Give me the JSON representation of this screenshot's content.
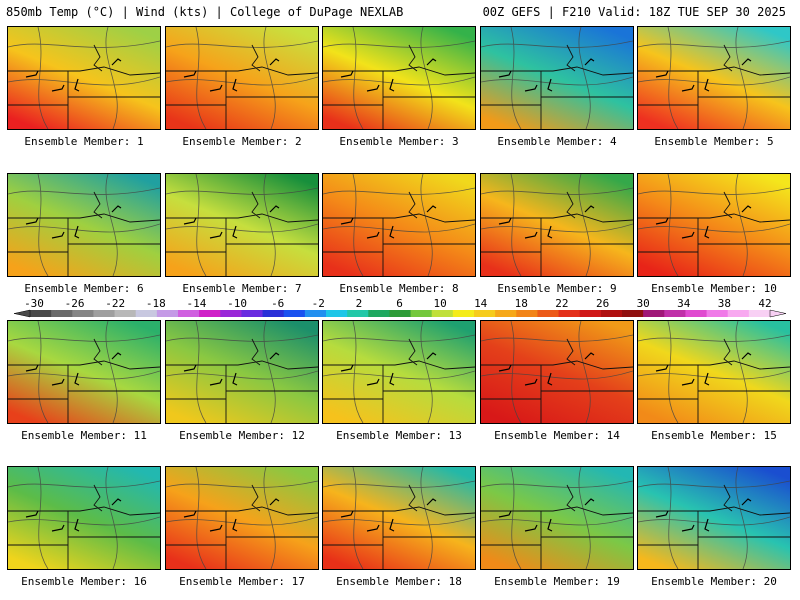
{
  "header": {
    "left": "850mb Temp (°C) | Wind (kts) | College of DuPage NEXLAB",
    "right": "00Z GEFS | F210 Valid: 18Z TUE SEP 30 2025"
  },
  "member_label_prefix": "Ensemble Member: ",
  "members": [
    {
      "id": 1,
      "label": "Ensemble Member: 1",
      "stops": [
        "#9ed046",
        "#f6c41c",
        "#ea2020"
      ]
    },
    {
      "id": 2,
      "label": "Ensemble Member: 2",
      "stops": [
        "#c9e03e",
        "#f6a31a",
        "#e83419"
      ]
    },
    {
      "id": 3,
      "label": "Ensemble Member: 3",
      "stops": [
        "#34b24a",
        "#f2e31a",
        "#e8301a"
      ]
    },
    {
      "id": 4,
      "label": "Ensemble Member: 4",
      "stops": [
        "#1a74d8",
        "#2ec2a0",
        "#f29a18"
      ]
    },
    {
      "id": 5,
      "label": "Ensemble Member: 5",
      "stops": [
        "#2fc7c7",
        "#f6c41c",
        "#ee3020"
      ]
    },
    {
      "id": 6,
      "label": "Ensemble Member: 6",
      "stops": [
        "#20a0a0",
        "#9fd040",
        "#f6a21a"
      ]
    },
    {
      "id": 7,
      "label": "Ensemble Member: 7",
      "stops": [
        "#178f3c",
        "#c6df3e",
        "#f6a21a"
      ]
    },
    {
      "id": 8,
      "label": "Ensemble Member: 8",
      "stops": [
        "#f0d81c",
        "#f48a18",
        "#e8301a"
      ]
    },
    {
      "id": 9,
      "label": "Ensemble Member: 9",
      "stops": [
        "#34a84a",
        "#f6b61c",
        "#e8301a"
      ]
    },
    {
      "id": 10,
      "label": "Ensemble Member: 10",
      "stops": [
        "#f4e61c",
        "#f48a18",
        "#e82418"
      ]
    },
    {
      "id": 11,
      "label": "Ensemble Member: 11",
      "stops": [
        "#2bb06b",
        "#a8d840",
        "#e8401a"
      ]
    },
    {
      "id": 12,
      "label": "Ensemble Member: 12",
      "stops": [
        "#1b8f6b",
        "#8ac842",
        "#f0c81c"
      ]
    },
    {
      "id": 13,
      "label": "Ensemble Member: 13",
      "stops": [
        "#1ea070",
        "#b6dc3e",
        "#f6c21c"
      ]
    },
    {
      "id": 14,
      "label": "Ensemble Member: 14",
      "stops": [
        "#f09a18",
        "#e4401a",
        "#d81818"
      ]
    },
    {
      "id": 15,
      "label": "Ensemble Member: 15",
      "stops": [
        "#28c0a0",
        "#f0d81c",
        "#f28a18"
      ]
    },
    {
      "id": 16,
      "label": "Ensemble Member: 16",
      "stops": [
        "#22b8b0",
        "#5cbc48",
        "#f0d41c"
      ]
    },
    {
      "id": 17,
      "label": "Ensemble Member: 17",
      "stops": [
        "#8ac842",
        "#f6a21a",
        "#e8301a"
      ]
    },
    {
      "id": 18,
      "label": "Ensemble Member: 18",
      "stops": [
        "#23b8a8",
        "#f6b41c",
        "#e83018"
      ]
    },
    {
      "id": 19,
      "label": "Ensemble Member: 19",
      "stops": [
        "#23b7b3",
        "#7cc846",
        "#f08a18"
      ]
    },
    {
      "id": 20,
      "label": "Ensemble Member: 20",
      "stops": [
        "#1a4ed0",
        "#28c3b0",
        "#f6b81c"
      ]
    }
  ],
  "colorbar": {
    "ticks": [
      "-30",
      "-26",
      "-22",
      "-18",
      "-14",
      "-10",
      "-6",
      "-2",
      "2",
      "6",
      "10",
      "14",
      "18",
      "22",
      "26",
      "30",
      "34",
      "38",
      "42"
    ],
    "colors": [
      "#4a4a4a",
      "#6a6a6a",
      "#858585",
      "#9f9f9f",
      "#b8b8b8",
      "#c8c8e0",
      "#c49ae6",
      "#d060e0",
      "#d020c8",
      "#9a28d8",
      "#6a2ce0",
      "#2a30d8",
      "#1a52f0",
      "#2290f0",
      "#1ec6e8",
      "#22c8a8",
      "#1ea860",
      "#2e9c38",
      "#74c83c",
      "#c0e03a",
      "#f4ec1a",
      "#f6cc1c",
      "#f6a81a",
      "#f28418",
      "#ec5a18",
      "#e4301a",
      "#d01818",
      "#b01010",
      "#901010",
      "#a01878",
      "#c030a8",
      "#e04ad0",
      "#f07ae8",
      "#f8a8f0",
      "#f8d0f4"
    ]
  }
}
